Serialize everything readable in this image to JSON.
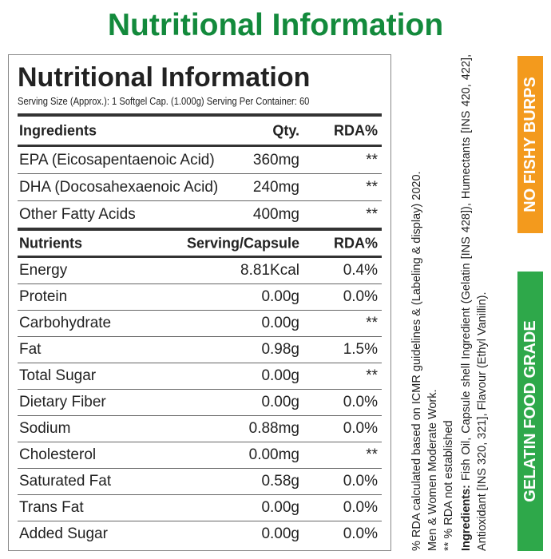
{
  "title": "Nutritional Information",
  "label": {
    "title": "Nutritional Information",
    "serving": "Serving Size (Approx.): 1 Softgel Cap. (1.000g)  Serving Per Container: 60"
  },
  "ingredients_table": {
    "header": [
      "Ingredients",
      "Qty.",
      "RDA%"
    ],
    "rows": [
      [
        "EPA (Eicosapentaenoic Acid)",
        "360mg",
        "**"
      ],
      [
        "DHA (Docosahexaenoic Acid)",
        "240mg",
        "**"
      ],
      [
        "Other Fatty Acids",
        "400mg",
        "**"
      ]
    ]
  },
  "nutrients_table": {
    "header": [
      "Nutrients",
      "Serving/Capsule",
      "RDA%"
    ],
    "rows": [
      [
        "Energy",
        "8.81Kcal",
        "0.4%"
      ],
      [
        "Protein",
        "0.00g",
        "0.0%"
      ],
      [
        "Carbohydrate",
        "0.00g",
        "**"
      ],
      [
        "Fat",
        "0.98g",
        "1.5%"
      ],
      [
        "Total Sugar",
        "0.00g",
        "**"
      ],
      [
        "Dietary Fiber",
        "0.00g",
        "0.0%"
      ],
      [
        "Sodium",
        "0.88mg",
        "0.0%"
      ],
      [
        "Cholesterol",
        "0.00mg",
        "**"
      ],
      [
        "Saturated Fat",
        "0.58g",
        "0.0%"
      ],
      [
        "Trans Fat",
        "0.00g",
        "0.0%"
      ],
      [
        "Added Sugar",
        "0.00g",
        "0.0%"
      ]
    ]
  },
  "notes": [
    "% RDA calculated based on ICMR guidelines & (Labeling & display) 2020.",
    "Men & Women Moderate Work.",
    "** % RDA not established"
  ],
  "ingredients": {
    "label": "Ingredients:",
    "text": "Fish Oil, Capsule shell Ingredient (Gelatin [INS 428]), Humectants [INS 420, 422], Antioxidant [INS 320, 321], Flavour (Ethyl Vanillin)."
  },
  "badges": [
    "NO FISHY BURPS",
    "GELATIN FOOD GRADE"
  ]
}
